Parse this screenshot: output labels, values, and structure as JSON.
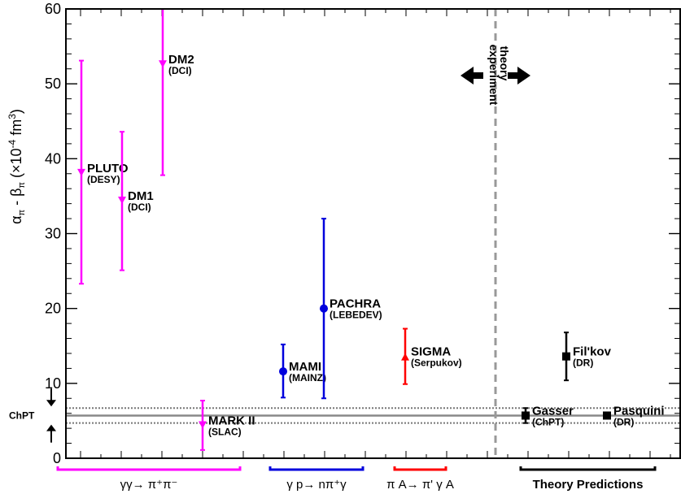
{
  "chart_data": {
    "type": "scatter",
    "ylabel": "α_π - β_π (×10⁻⁴ fm³)",
    "ylabel_parts": {
      "alpha": "α",
      "pi": "π",
      "minus": " - ",
      "beta": "β",
      "unit_open": " (×10",
      "exp": "-4",
      "unit_mid": " fm",
      "cube": "3",
      "close": ")"
    },
    "ylim": [
      0,
      60
    ],
    "yticks": [
      0,
      10,
      20,
      30,
      40,
      50,
      60
    ],
    "grid": false,
    "chpt": {
      "label": "ChPT",
      "central": 5.7,
      "band": [
        4.7,
        6.7
      ]
    },
    "divider": {
      "left_label": "experiment",
      "right_label": "theory"
    },
    "points": [
      {
        "label": "PLUTO",
        "sub": "(DESY)",
        "y": 38.1,
        "err_low": 23.3,
        "err_high": 53.1,
        "color": "#ff00ff",
        "marker": "triangle-down"
      },
      {
        "label": "DM1",
        "sub": "(DCI)",
        "y": 34.4,
        "err_low": 25.1,
        "err_high": 43.6,
        "color": "#ff00ff",
        "marker": "triangle-down"
      },
      {
        "label": "DM2",
        "sub": "(DCI)",
        "y": 52.6,
        "err_low": 37.8,
        "err_high": 60,
        "color": "#ff00ff",
        "marker": "triangle-down"
      },
      {
        "label": "MARK II",
        "sub": "(SLAC)",
        "y": 4.4,
        "err_low": 1.1,
        "err_high": 7.7,
        "color": "#ff00ff",
        "marker": "triangle-down"
      },
      {
        "label": "MAMI",
        "sub": "(MAINZ)",
        "y": 11.6,
        "err_low": 8.1,
        "err_high": 15.2,
        "color": "#0000dd",
        "marker": "circle"
      },
      {
        "label": "PACHRA",
        "sub": "(LEBEDEV)",
        "y": 20.0,
        "err_low": 8.0,
        "err_high": 32.0,
        "color": "#0000dd",
        "marker": "circle"
      },
      {
        "label": "SIGMA",
        "sub": "(Serpukov)",
        "y": 13.6,
        "err_low": 9.9,
        "err_high": 17.3,
        "color": "#ff0000",
        "marker": "triangle-up"
      },
      {
        "label": "Fil'kov",
        "sub": "(DR)",
        "y": 13.6,
        "err_low": 10.4,
        "err_high": 16.8,
        "color": "#000000",
        "marker": "square"
      },
      {
        "label": "Gasser",
        "sub": "(ChPT)",
        "y": 5.7,
        "err_low": 4.7,
        "err_high": 6.7,
        "color": "#000000",
        "marker": "square"
      },
      {
        "label": "Pasquini",
        "sub": "(DR)",
        "y": 5.7,
        "err_low": 5.7,
        "err_high": 5.7,
        "color": "#000000",
        "marker": "square"
      }
    ],
    "groups": [
      {
        "label": "γγ→ π⁺π⁻",
        "color": "#ff00ff"
      },
      {
        "label": "γ p→ nπ⁺γ",
        "color": "#0000dd"
      },
      {
        "label": "π A→ π' γ A",
        "color": "#ff0000"
      },
      {
        "label": "Theory Predictions",
        "color": "#000000"
      }
    ]
  }
}
